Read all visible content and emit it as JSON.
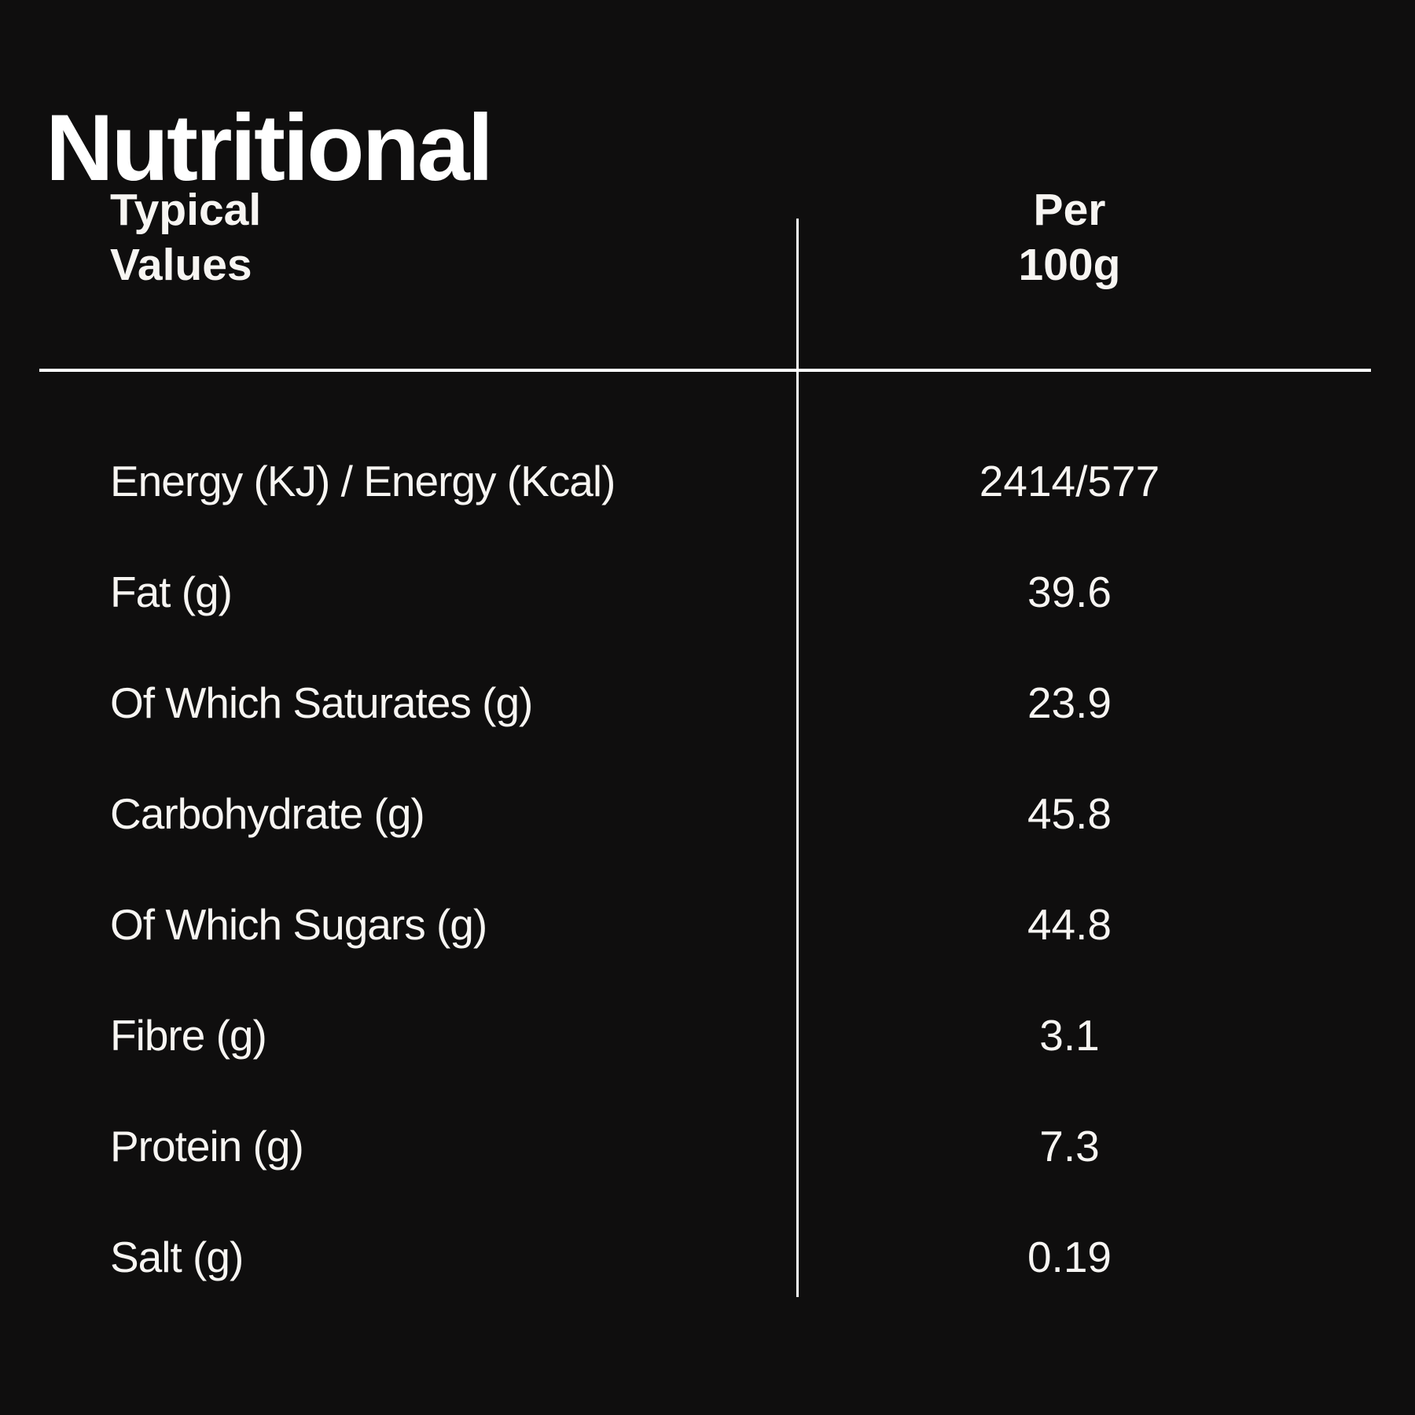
{
  "page": {
    "title": "Nutritional",
    "background_color": "#0f0e0e",
    "text_color": "#f7f5f2",
    "rule_color": "#ffffff"
  },
  "table": {
    "header": {
      "label_line1": "Typical",
      "label_line2": "Values",
      "value_line1": "Per",
      "value_line2": "100g"
    },
    "rows": [
      {
        "label": "Energy (KJ) / Energy (Kcal)",
        "value": "2414/577"
      },
      {
        "label": "Fat (g)",
        "value": "39.6"
      },
      {
        "label": "Of Which Saturates (g)",
        "value": "23.9"
      },
      {
        "label": "Carbohydrate (g)",
        "value": "45.8"
      },
      {
        "label": "Of Which Sugars (g)",
        "value": "44.8"
      },
      {
        "label": "Fibre (g)",
        "value": "3.1"
      },
      {
        "label": "Protein (g)",
        "value": "7.3"
      },
      {
        "label": "Salt (g)",
        "value": "0.19"
      }
    ]
  }
}
